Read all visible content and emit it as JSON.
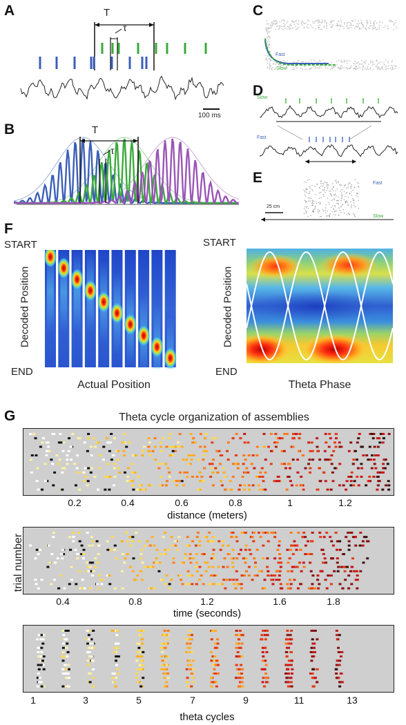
{
  "panels": {
    "A": {
      "letter": "A",
      "big_tau": "T",
      "small_tau": "τ",
      "scale_bar": "100 ms"
    },
    "B": {
      "letter": "B",
      "big_tau": "T",
      "small_tau": "τ"
    },
    "C": {
      "letter": "C",
      "fast": "Fast",
      "slow": "Slow"
    },
    "D": {
      "letter": "D",
      "slow": "Slow",
      "fast": "Fast"
    },
    "E": {
      "letter": "E",
      "scale": "25 cm",
      "fast": "Fast",
      "slow": "Slow"
    },
    "F": {
      "letter": "F",
      "left": {
        "start": "START",
        "end": "END",
        "ylabel": "Decoded Position",
        "xlabel": "Actual Position"
      },
      "right": {
        "start": "START",
        "end": "END",
        "ylabel": "Decoded Position",
        "xlabel": "Theta Phase"
      }
    },
    "G": {
      "letter": "G",
      "title": "Theta cycle organization of assemblies",
      "ylabel": "trial number",
      "subplots": [
        {
          "xlabel": "distance (meters)",
          "ticks": [
            "0.2",
            "0.4",
            "0.6",
            "0.8",
            "1",
            "1.2"
          ]
        },
        {
          "xlabel": "time (seconds)",
          "ticks": [
            "0.4",
            "0.8",
            "1.2",
            "1.6",
            "1.8"
          ]
        },
        {
          "xlabel": "theta cycles",
          "ticks": [
            "1",
            "3",
            "5",
            "7",
            "9",
            "11",
            "13"
          ]
        }
      ]
    }
  },
  "colors": {
    "blue": "#3a5fb8",
    "green": "#3aaa3a",
    "purple": "#9a55b5",
    "grey_panel": "#cfcfcf",
    "trace": "#222222"
  }
}
